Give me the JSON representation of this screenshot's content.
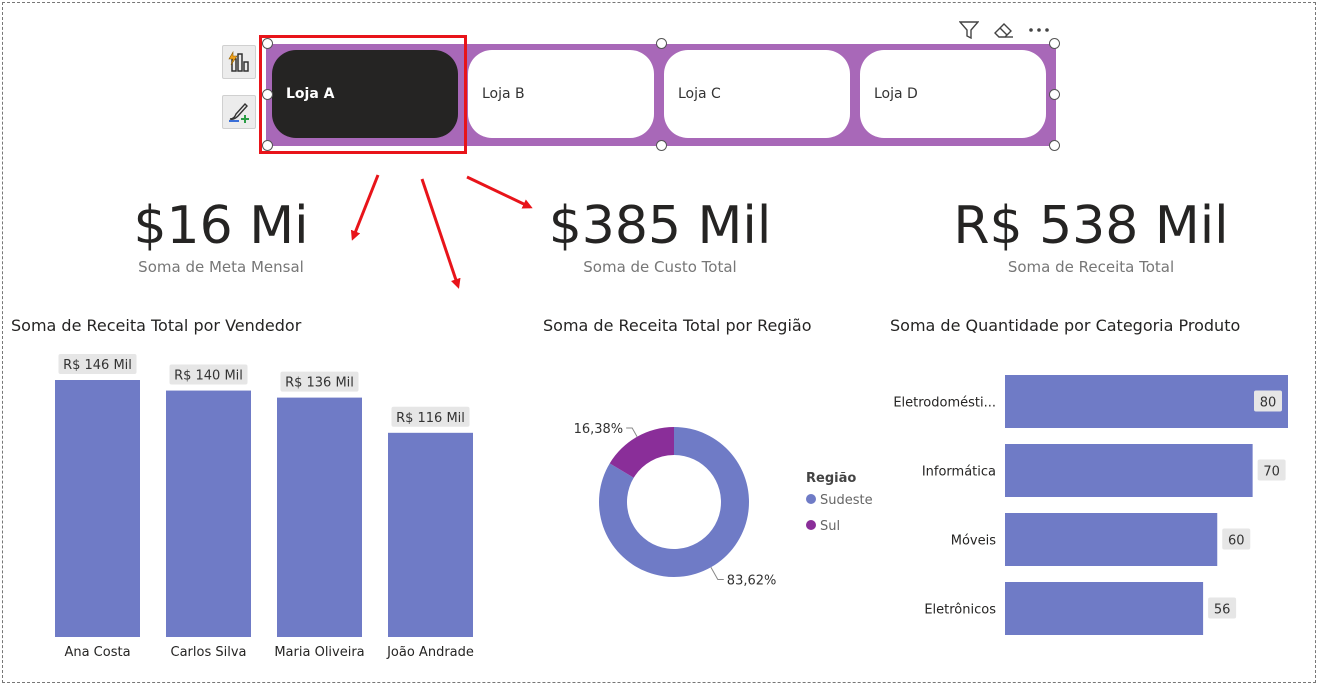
{
  "colors": {
    "bar": "#6f7bc6",
    "sudeste": "#6f7bc6",
    "sul": "#8a2e99",
    "slicer_bg": "#a868b8",
    "selected_tile": "#252423",
    "selection_box": "#e8141a",
    "arrow": "#e8141a"
  },
  "slicer": {
    "items": [
      {
        "label": "Loja A",
        "selected": true
      },
      {
        "label": "Loja B",
        "selected": false
      },
      {
        "label": "Loja C",
        "selected": false
      },
      {
        "label": "Loja D",
        "selected": false
      }
    ]
  },
  "toolbar": {
    "icons": [
      "filter-icon",
      "eraser-icon",
      "more-options-icon"
    ],
    "side_buttons": [
      "format-visual-icon",
      "build-visual-icon"
    ]
  },
  "kpis": [
    {
      "value": "$16 Mi",
      "label": "Soma de Meta Mensal"
    },
    {
      "value": "$385 Mil",
      "label": "Soma de Custo Total"
    },
    {
      "value": "R$ 538 Mil",
      "label": "Soma de Receita Total"
    }
  ],
  "chart_data": [
    {
      "type": "bar",
      "title": "Soma de Receita Total por Vendedor",
      "categories": [
        "Ana Costa",
        "Carlos Silva",
        "Maria Oliveira",
        "João Andrade"
      ],
      "values": [
        146,
        140,
        136,
        116
      ],
      "data_labels": [
        "R$ 146 Mil",
        "R$ 140 Mil",
        "R$ 136 Mil",
        "R$ 116 Mil"
      ],
      "ylim": [
        0,
        146
      ]
    },
    {
      "type": "pie",
      "title": "Soma de Receita Total por Região",
      "legend_title": "Região",
      "legend_position": "right",
      "slices": [
        {
          "name": "Sudeste",
          "value": 83.62,
          "label": "83,62%"
        },
        {
          "name": "Sul",
          "value": 16.38,
          "label": "16,38%"
        }
      ]
    },
    {
      "type": "bar",
      "orientation": "horizontal",
      "title": "Soma de Quantidade por Categoria Produto",
      "categories": [
        "Eletrodomésti...",
        "Informática",
        "Móveis",
        "Eletrônicos"
      ],
      "values": [
        80,
        70,
        60,
        56
      ],
      "data_labels": [
        "80",
        "70",
        "60",
        "56"
      ],
      "xlim": [
        0,
        80
      ]
    }
  ]
}
